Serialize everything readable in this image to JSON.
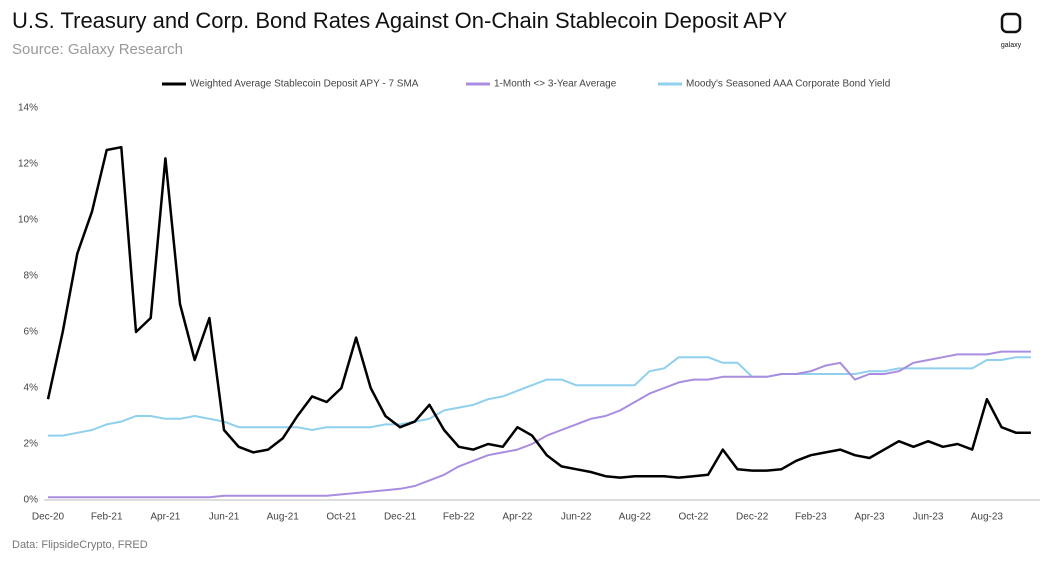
{
  "chart_data": {
    "type": "line",
    "title": "U.S. Treasury and Corp. Bond Rates Against On-Chain Stablecoin Deposit APY",
    "subtitle": "Source: Galaxy Research",
    "source": "Data: FlipsideCrypto, FRED",
    "logo": "galaxy",
    "categories": [
      "Dec-20",
      null,
      null,
      null,
      "Feb-21",
      null,
      null,
      null,
      "Apr-21",
      null,
      null,
      null,
      "Jun-21",
      null,
      null,
      null,
      "Aug-21",
      null,
      null,
      null,
      "Oct-21",
      null,
      null,
      null,
      "Dec-21",
      null,
      null,
      null,
      "Feb-22",
      null,
      null,
      null,
      "Apr-22",
      null,
      null,
      null,
      "Jun-22",
      null,
      null,
      null,
      "Aug-22",
      null,
      null,
      null,
      "Oct-22",
      null,
      null,
      null,
      "Dec-22",
      null,
      null,
      null,
      "Feb-23",
      null,
      null,
      null,
      "Apr-23",
      null,
      null,
      null,
      "Jun-23",
      null,
      null,
      null,
      "Aug-23",
      null,
      null,
      null
    ],
    "series": [
      {
        "name": "Weighted Average Stablecoin Deposit APY - 7 SMA",
        "color": "#000000",
        "values": [
          3.6,
          6.0,
          8.8,
          10.3,
          12.5,
          12.6,
          6.0,
          6.5,
          12.2,
          7.0,
          5.0,
          6.5,
          2.5,
          1.9,
          1.7,
          1.8,
          2.2,
          3.0,
          3.7,
          3.5,
          4.0,
          5.8,
          4.0,
          3.0,
          2.6,
          2.8,
          3.4,
          2.5,
          1.9,
          1.8,
          2.0,
          1.9,
          2.6,
          2.3,
          1.6,
          1.2,
          1.1,
          1.0,
          0.85,
          0.8,
          0.85,
          0.85,
          0.85,
          0.8,
          0.85,
          0.9,
          1.8,
          1.1,
          1.05,
          1.05,
          1.1,
          1.4,
          1.6,
          1.7,
          1.8,
          1.6,
          1.5,
          1.8,
          2.1,
          1.9,
          2.1,
          1.9,
          2.0,
          1.8,
          3.6,
          2.6,
          2.4,
          2.4
        ]
      },
      {
        "name": "1-Month <> 3-Year Average",
        "color": "#a98de0",
        "values": [
          0.1,
          0.1,
          0.1,
          0.1,
          0.1,
          0.1,
          0.1,
          0.1,
          0.1,
          0.1,
          0.1,
          0.1,
          0.15,
          0.15,
          0.15,
          0.15,
          0.15,
          0.15,
          0.15,
          0.15,
          0.2,
          0.25,
          0.3,
          0.35,
          0.4,
          0.5,
          0.7,
          0.9,
          1.2,
          1.4,
          1.6,
          1.7,
          1.8,
          2.0,
          2.3,
          2.5,
          2.7,
          2.9,
          3.0,
          3.2,
          3.5,
          3.8,
          4.0,
          4.2,
          4.3,
          4.3,
          4.4,
          4.4,
          4.4,
          4.4,
          4.5,
          4.5,
          4.6,
          4.8,
          4.9,
          4.3,
          4.5,
          4.5,
          4.6,
          4.9,
          5.0,
          5.1,
          5.2,
          5.2,
          5.2,
          5.3,
          5.3,
          5.3
        ]
      },
      {
        "name": "Moody's Seasoned AAA Corporate Bond Yield",
        "color": "#8fd0ee",
        "values": [
          2.3,
          2.3,
          2.4,
          2.5,
          2.7,
          2.8,
          3.0,
          3.0,
          2.9,
          2.9,
          3.0,
          2.9,
          2.8,
          2.6,
          2.6,
          2.6,
          2.6,
          2.6,
          2.5,
          2.6,
          2.6,
          2.6,
          2.6,
          2.7,
          2.7,
          2.8,
          2.9,
          3.2,
          3.3,
          3.4,
          3.6,
          3.7,
          3.9,
          4.1,
          4.3,
          4.3,
          4.1,
          4.1,
          4.1,
          4.1,
          4.1,
          4.6,
          4.7,
          5.1,
          5.1,
          5.1,
          4.9,
          4.9,
          4.4,
          4.4,
          4.5,
          4.5,
          4.5,
          4.5,
          4.5,
          4.5,
          4.6,
          4.6,
          4.7,
          4.7,
          4.7,
          4.7,
          4.7,
          4.7,
          5.0,
          5.0,
          5.1,
          5.1
        ]
      }
    ],
    "ylim": [
      0,
      14
    ],
    "yticks": [
      {
        "value": 0,
        "label": "0%"
      },
      {
        "value": 2,
        "label": "2%"
      },
      {
        "value": 4,
        "label": "4%"
      },
      {
        "value": 6,
        "label": "6%"
      },
      {
        "value": 8,
        "label": "8%"
      },
      {
        "value": 10,
        "label": "10%"
      },
      {
        "value": 12,
        "label": "12%"
      },
      {
        "value": 14,
        "label": "14%"
      }
    ],
    "grid": false,
    "legend": "top"
  }
}
